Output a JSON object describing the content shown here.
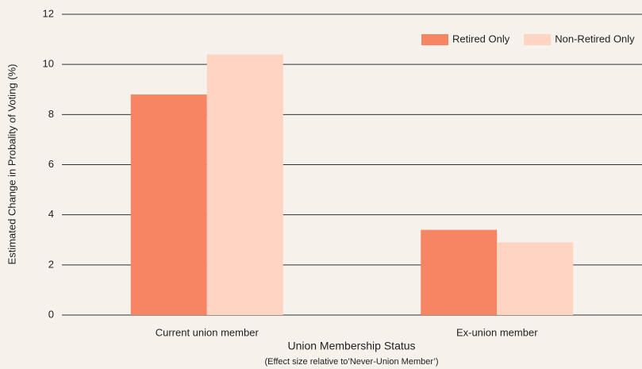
{
  "chart_data": {
    "type": "bar",
    "x_label": "Union Membership Status",
    "x_sublabel": "(Effect size relative to’Never-Union Member’)",
    "y_label": "Estimated Change in Probality of Voting (%)",
    "categories": [
      "Current union member",
      "Ex-union member"
    ],
    "series": [
      {
        "name": "Retired Only",
        "color": "#f78463",
        "values": [
          8.8,
          3.4
        ]
      },
      {
        "name": "Non-Retired Only",
        "color": "#fdd5c2",
        "values": [
          10.4,
          2.9
        ]
      }
    ],
    "ylim": [
      0,
      12
    ],
    "yticks": [
      0,
      2,
      4,
      6,
      8,
      10,
      12
    ],
    "grid": true,
    "legend": "top-right"
  }
}
